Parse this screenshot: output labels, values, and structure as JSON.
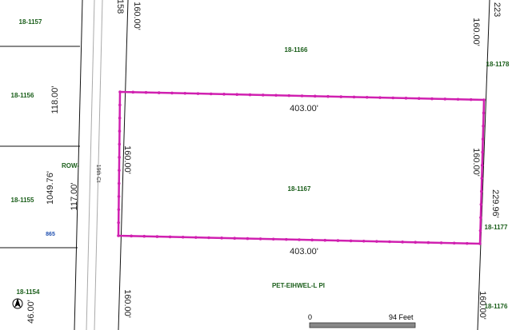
{
  "parcels": [
    "18-1157",
    "18-1156",
    "18-1155",
    "18-1154",
    "18-1166",
    "18-1167",
    "18-1178",
    "18-1177",
    "18-1176"
  ],
  "streets": [
    "ROW-",
    "PET-EIHWEL-L PI",
    "19th Ct"
  ],
  "dimensions": [
    "158",
    "160.00'",
    "118.00'",
    "1049.76'",
    "117.00'",
    "403.00'",
    "160.00'",
    "160.00'",
    "229.96'",
    "403.00'",
    "160.00'",
    "223",
    "46.00'",
    "160.00'",
    "160.00'"
  ],
  "marker": "865",
  "scale_bar": {
    "start": "0",
    "end": "94 Feet"
  }
}
